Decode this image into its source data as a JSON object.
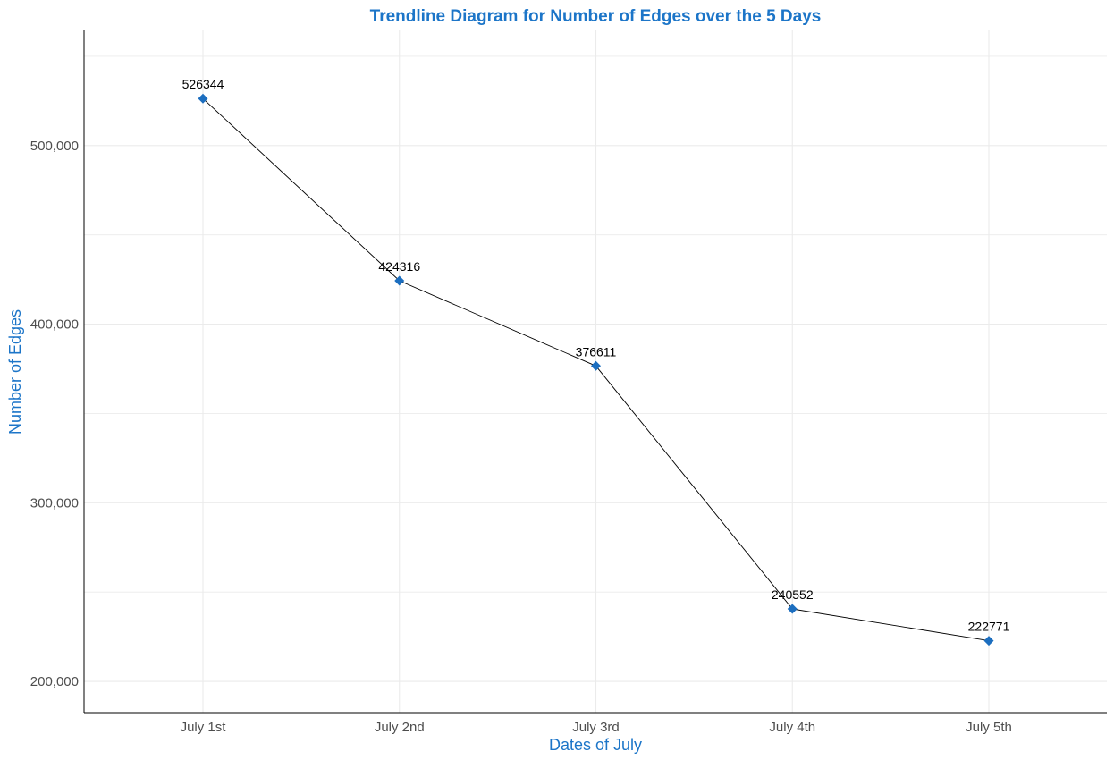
{
  "chart_data": {
    "type": "line",
    "title": "Trendline Diagram for Number of Edges over the 5 Days",
    "xlabel": "Dates of July",
    "ylabel": "Number of Edges",
    "categories": [
      "July 1st",
      "July 2nd",
      "July 3rd",
      "July 4th",
      "July 5th"
    ],
    "values": [
      526344,
      424316,
      376611,
      240552,
      222771
    ],
    "data_labels": [
      "526344",
      "424316",
      "376611",
      "240552",
      "222771"
    ],
    "ylim": [
      182500,
      564500
    ],
    "y_ticks": [
      200000,
      300000,
      400000,
      500000
    ],
    "y_tick_labels": [
      "200,000",
      "300,000",
      "400,000",
      "500,000"
    ],
    "y_minor_ticks": [
      250000,
      350000,
      450000,
      550000
    ],
    "grid": true,
    "legend": "none",
    "marker": "diamond",
    "colors": {
      "title": "#1c75c8",
      "axis_title": "#1c75c8",
      "marker": "#1c6ebf",
      "line": "#000000",
      "grid": "#ebebeb",
      "axis_line": "#000000"
    }
  }
}
